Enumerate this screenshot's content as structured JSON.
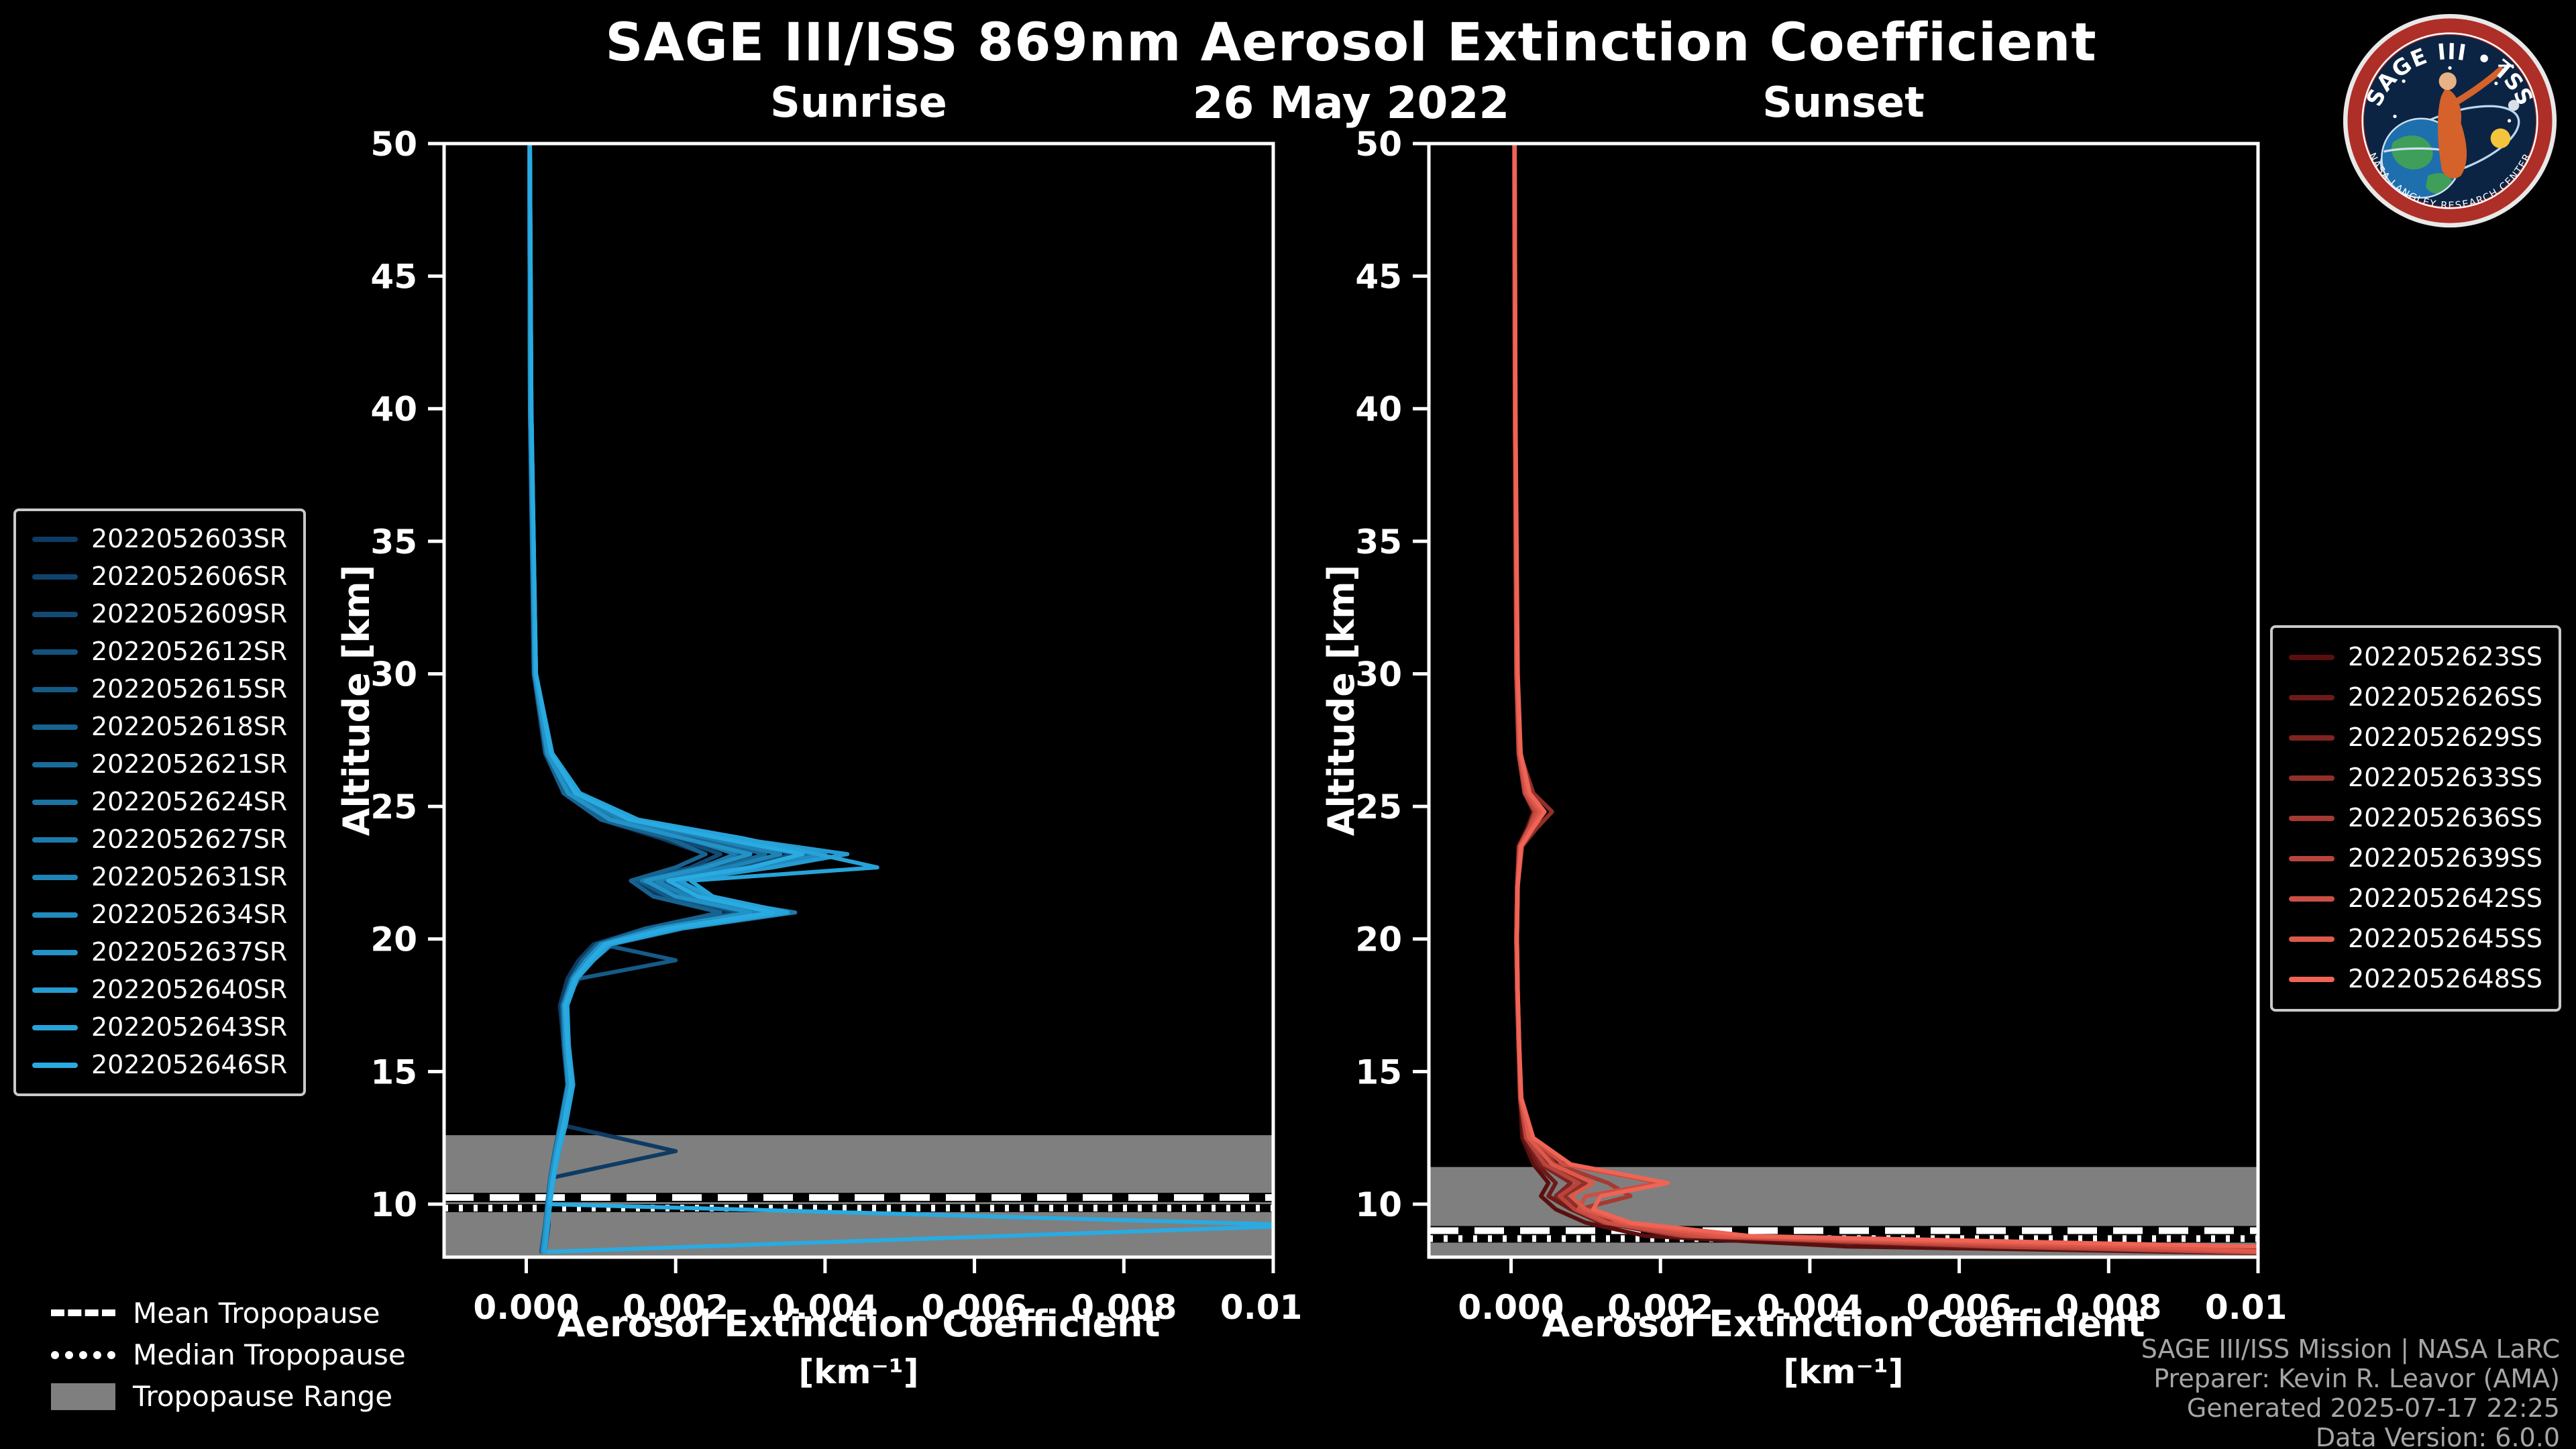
{
  "header": {
    "title": "SAGE III/ISS 869nm Aerosol Extinction Coefficient",
    "date": "26 May 2022"
  },
  "logo": {
    "text": "SAGE III • ISS",
    "ring_text": "NASA LANGLEY RESEARCH CENTER"
  },
  "colors": {
    "background": "#000000",
    "text": "#ffffff",
    "muted_text": "#a6a6a6",
    "band": "#7f7f7f",
    "frame": "#ffffff",
    "sunrise_accent": "#29abe2",
    "sunset_accent": "#f06455"
  },
  "tropopause_legend": {
    "items": [
      {
        "label": "Mean Tropopause",
        "style": "dashed"
      },
      {
        "label": "Median Tropopause",
        "style": "dotted"
      },
      {
        "label": "Tropopause Range",
        "style": "band"
      }
    ]
  },
  "footer": {
    "lines": [
      "SAGE III/ISS Mission | NASA LaRC",
      "Preparer: Kevin R. Leavor (AMA)",
      "Generated 2025-07-17 22:25",
      "Data Version: 6.0.0"
    ]
  },
  "chart_data": [
    {
      "type": "line",
      "id": "sunrise",
      "title": "Sunrise",
      "xlabel": "Aerosol Extinction Coefficient",
      "xlabel_units": "[km⁻¹]",
      "ylabel": "Altitude [km]",
      "xlim": [
        -0.0011,
        0.01
      ],
      "ylim": [
        8,
        50
      ],
      "xticks": [
        0,
        0.002,
        0.004,
        0.006,
        0.008,
        0.01
      ],
      "xtick_labels": [
        "0.000",
        "0.002",
        "0.004",
        "0.006",
        "0.008",
        "0.010"
      ],
      "yticks": [
        10,
        15,
        20,
        25,
        30,
        35,
        40,
        45,
        50
      ],
      "grid": false,
      "legend_side": "left",
      "tropopause": {
        "range": [
          8,
          12.6
        ],
        "mean": 10.25,
        "median": 9.85
      },
      "altitudes": [
        50,
        40,
        30,
        27,
        25.5,
        24.5,
        23.8,
        23.2,
        22.7,
        22.2,
        21.6,
        21,
        20.4,
        19.8,
        19.2,
        18.5,
        17.5,
        16,
        14.5,
        13,
        12,
        11,
        10,
        9.2,
        8.2
      ],
      "series": [
        {
          "name": "2022052603SR",
          "color": "#0d3b63",
          "ext": [
            5e-05,
            6e-05,
            0.0001,
            0.00025,
            0.0005,
            0.001,
            0.0018,
            0.0024,
            0.002,
            0.0014,
            0.0018,
            0.0028,
            0.0016,
            0.0009,
            0.0007,
            0.00055,
            0.00045,
            0.0005,
            0.00055,
            0.00045,
            0.002,
            0.00035,
            0.0003,
            0.00025,
            0.0002
          ]
        },
        {
          "name": "2022052606SR",
          "color": "#0f436c",
          "ext": [
            5e-05,
            6e-05,
            0.00012,
            0.0003,
            0.0006,
            0.0012,
            0.0022,
            0.003,
            0.0024,
            0.0016,
            0.002,
            0.003,
            0.0018,
            0.001,
            0.0008,
            0.0006,
            0.0005,
            0.00055,
            0.0006,
            0.0005,
            0.0004,
            0.00035,
            0.0003,
            0.0003,
            0.00025
          ]
        },
        {
          "name": "2022052609SR",
          "color": "#114b75",
          "ext": [
            4e-05,
            5e-05,
            0.0001,
            0.00028,
            0.00055,
            0.0011,
            0.002,
            0.0026,
            0.0022,
            0.0015,
            0.0022,
            0.0034,
            0.002,
            0.0011,
            0.0009,
            0.00065,
            0.0005,
            0.0005,
            0.00055,
            0.00045,
            0.00038,
            0.00032,
            0.00028,
            0.00026,
            0.00022
          ]
        },
        {
          "name": "2022052612SR",
          "color": "#13537e",
          "ext": [
            5e-05,
            6e-05,
            0.00011,
            0.0003,
            0.0006,
            0.0013,
            0.0025,
            0.0036,
            0.0028,
            0.0018,
            0.0022,
            0.0032,
            0.0019,
            0.001,
            0.00085,
            0.0006,
            0.0005,
            0.00055,
            0.0006,
            0.0005,
            0.0004,
            0.00035,
            0.0003,
            0.00028,
            0.00024
          ]
        },
        {
          "name": "2022052615SR",
          "color": "#155b87",
          "ext": [
            5e-05,
            6e-05,
            0.0001,
            0.00028,
            0.00055,
            0.0011,
            0.0021,
            0.0029,
            0.0023,
            0.0015,
            0.0019,
            0.0029,
            0.0017,
            0.001,
            0.002,
            0.0007,
            0.0005,
            0.0005,
            0.00055,
            0.00045,
            0.0004,
            0.00033,
            0.0003,
            0.00027,
            0.00022
          ]
        },
        {
          "name": "2022052618SR",
          "color": "#176390",
          "ext": [
            4e-05,
            5e-05,
            0.0001,
            0.00026,
            0.0005,
            0.001,
            0.0019,
            0.0024,
            0.002,
            0.0014,
            0.0017,
            0.0026,
            0.0016,
            0.00095,
            0.00075,
            0.0006,
            0.00048,
            0.0005,
            0.00055,
            0.00045,
            0.00038,
            0.00032,
            0.00028,
            0.00025,
            0.0002
          ]
        },
        {
          "name": "2022052621SR",
          "color": "#196b99",
          "ext": [
            5e-05,
            6e-05,
            0.00011,
            0.0003,
            0.0006,
            0.0012,
            0.0023,
            0.0032,
            0.0026,
            0.0017,
            0.0021,
            0.0031,
            0.0018,
            0.001,
            0.0008,
            0.00062,
            0.0005,
            0.00052,
            0.00058,
            0.00048,
            0.0004,
            0.00034,
            0.0003,
            0.00027,
            0.00023
          ]
        },
        {
          "name": "2022052624SR",
          "color": "#1b73a2",
          "ext": [
            5e-05,
            6e-05,
            0.00012,
            0.00032,
            0.00065,
            0.00135,
            0.0026,
            0.0038,
            0.003,
            0.0019,
            0.0023,
            0.0033,
            0.0019,
            0.00105,
            0.00085,
            0.00065,
            0.00052,
            0.00054,
            0.0006,
            0.0005,
            0.00042,
            0.00035,
            0.0003,
            0.00028,
            0.00024
          ]
        },
        {
          "name": "2022052627SR",
          "color": "#1d7bab",
          "ext": [
            4e-05,
            5e-05,
            0.00011,
            0.00029,
            0.00058,
            0.00115,
            0.00215,
            0.0028,
            0.00235,
            0.00155,
            0.0023,
            0.0036,
            0.0021,
            0.00115,
            0.0009,
            0.00068,
            0.00052,
            0.00052,
            0.00057,
            0.00047,
            0.0004,
            0.00033,
            0.00029,
            0.00026,
            0.00022
          ]
        },
        {
          "name": "2022052631SR",
          "color": "#1f83b5",
          "ext": [
            5e-05,
            6e-05,
            0.00012,
            0.00031,
            0.00062,
            0.00128,
            0.00245,
            0.0034,
            0.0027,
            0.00175,
            0.00215,
            0.00315,
            0.00185,
            0.00102,
            0.00082,
            0.00063,
            0.0005,
            0.00053,
            0.00058,
            0.00048,
            0.0004,
            0.00034,
            0.0003,
            0.00027,
            0.00023
          ]
        },
        {
          "name": "2022052634SR",
          "color": "#218bbe",
          "ext": [
            5e-05,
            6e-05,
            0.00012,
            0.00033,
            0.00068,
            0.0014,
            0.0027,
            0.004,
            0.0031,
            0.00195,
            0.00235,
            0.00335,
            0.00195,
            0.00108,
            0.00086,
            0.00066,
            0.00053,
            0.00055,
            0.0006,
            0.0005,
            0.00042,
            0.00035,
            0.00031,
            0.00028,
            0.00024
          ]
        },
        {
          "name": "2022052637SR",
          "color": "#2393c7",
          "ext": [
            4e-05,
            5e-05,
            0.00011,
            0.00028,
            0.00056,
            0.00112,
            0.0021,
            0.003,
            0.0024,
            0.0016,
            0.002,
            0.003,
            0.00175,
            0.001,
            0.0008,
            0.00062,
            0.0005,
            0.00052,
            0.00056,
            0.00046,
            0.00039,
            0.00033,
            0.00029,
            0.00026,
            0.00022
          ]
        },
        {
          "name": "2022052640SR",
          "color": "#259bd0",
          "ext": [
            5e-05,
            7e-05,
            0.00013,
            0.00034,
            0.0007,
            0.00145,
            0.0028,
            0.0043,
            0.0033,
            0.00205,
            0.00245,
            0.00345,
            0.002,
            0.0011,
            0.00088,
            0.00067,
            0.00054,
            0.00056,
            0.00062,
            0.00052,
            0.00043,
            0.00036,
            0.00031,
            0.00028,
            0.00024
          ]
        },
        {
          "name": "2022052643SR",
          "color": "#27a3d9",
          "ext": [
            5e-05,
            7e-05,
            0.00013,
            0.00035,
            0.00072,
            0.0015,
            0.0029,
            0.0039,
            0.0047,
            0.0022,
            0.0025,
            0.0035,
            0.00205,
            0.00112,
            0.0009,
            0.00068,
            0.00055,
            0.00057,
            0.00063,
            0.00053,
            0.00044,
            0.00037,
            0.00032,
            0.00029,
            0.00025
          ]
        },
        {
          "name": "2022052646SR",
          "color": "#29abe2",
          "ext": [
            5e-05,
            7e-05,
            0.00013,
            0.00033,
            0.00066,
            0.00138,
            0.0026,
            0.0037,
            0.003,
            0.0019,
            0.0023,
            0.0033,
            0.0019,
            0.00105,
            0.00085,
            0.00065,
            0.00052,
            0.00055,
            0.0006,
            0.0005,
            0.00042,
            0.00036,
            0.00031,
            0.0105,
            0.0003
          ]
        }
      ]
    },
    {
      "type": "line",
      "id": "sunset",
      "title": "Sunset",
      "xlabel": "Aerosol Extinction Coefficient",
      "xlabel_units": "[km⁻¹]",
      "ylabel": "Altitude [km]",
      "xlim": [
        -0.0011,
        0.01
      ],
      "ylim": [
        8,
        50
      ],
      "xticks": [
        0,
        0.002,
        0.004,
        0.006,
        0.008,
        0.01
      ],
      "xtick_labels": [
        "0.000",
        "0.002",
        "0.004",
        "0.006",
        "0.008",
        "0.010"
      ],
      "yticks": [
        10,
        15,
        20,
        25,
        30,
        35,
        40,
        45,
        50
      ],
      "grid": false,
      "legend_side": "right",
      "tropopause": {
        "range": [
          8,
          11.4
        ],
        "mean": 9.0,
        "median": 8.7
      },
      "altitudes": [
        50,
        40,
        30,
        27,
        25.5,
        24.8,
        24.2,
        23.5,
        22,
        20,
        18,
        16,
        14,
        12.5,
        11.5,
        10.8,
        10.3,
        9.8,
        9.3,
        8.8,
        8.4,
        8.1
      ],
      "series": [
        {
          "name": "2022052623SS",
          "color": "#5a0f0f",
          "ext": [
            5e-05,
            5e-05,
            8e-05,
            0.0001,
            0.0002,
            0.00035,
            0.00025,
            0.00012,
            8e-05,
            7e-05,
            8e-05,
            0.0001,
            0.00012,
            0.00015,
            0.0003,
            0.0005,
            0.0004,
            0.0006,
            0.001,
            0.0018,
            0.0045,
            0.011
          ]
        },
        {
          "name": "2022052626SS",
          "color": "#6d1a18",
          "ext": [
            4e-05,
            5e-05,
            7e-05,
            0.0001,
            0.00018,
            0.0003,
            0.00022,
            0.0001,
            8e-05,
            7e-05,
            8e-05,
            0.0001,
            0.00012,
            0.00018,
            0.00035,
            0.0006,
            0.0005,
            0.0008,
            0.0012,
            0.0022,
            0.006,
            0.011
          ]
        },
        {
          "name": "2022052629SS",
          "color": "#802421",
          "ext": [
            5e-05,
            5e-05,
            8e-05,
            0.00012,
            0.00022,
            0.0004,
            0.00028,
            0.00012,
            9e-05,
            8e-05,
            9e-05,
            0.00011,
            0.00013,
            0.0002,
            0.0004,
            0.0008,
            0.0006,
            0.0009,
            0.0014,
            0.0026,
            0.008,
            0.011
          ]
        },
        {
          "name": "2022052633SS",
          "color": "#922f29",
          "ext": [
            5e-05,
            6e-05,
            8e-05,
            0.00012,
            0.0003,
            0.00055,
            0.00035,
            0.00015,
            9e-05,
            8e-05,
            9e-05,
            0.00011,
            0.00014,
            0.00022,
            0.0005,
            0.001,
            0.0007,
            0.001,
            0.0016,
            0.003,
            0.0095,
            0.011
          ]
        },
        {
          "name": "2022052636SS",
          "color": "#a53a32",
          "ext": [
            5e-05,
            5e-05,
            8e-05,
            0.00011,
            0.0002,
            0.00038,
            0.00026,
            0.00012,
            8e-05,
            7e-05,
            9e-05,
            0.0001,
            0.00013,
            0.00025,
            0.0006,
            0.0013,
            0.0016,
            0.0009,
            0.0013,
            0.0024,
            0.007,
            0.011
          ]
        },
        {
          "name": "2022052639SS",
          "color": "#b8443b",
          "ext": [
            4e-05,
            5e-05,
            7e-05,
            0.0001,
            0.00018,
            0.00032,
            0.00024,
            0.00011,
            8e-05,
            7e-05,
            8e-05,
            0.0001,
            0.00012,
            0.0002,
            0.00045,
            0.0009,
            0.00065,
            0.00085,
            0.00125,
            0.0023,
            0.0065,
            0.011
          ]
        },
        {
          "name": "2022052642SS",
          "color": "#cb4f44",
          "ext": [
            5e-05,
            5e-05,
            8e-05,
            0.00011,
            0.0002,
            0.00036,
            0.00025,
            0.00012,
            8e-05,
            7e-05,
            8e-05,
            0.0001,
            0.00013,
            0.00028,
            0.0007,
            0.002,
            0.001,
            0.0009,
            0.0013,
            0.0025,
            0.0075,
            0.011
          ]
        },
        {
          "name": "2022052645SS",
          "color": "#dd594c",
          "ext": [
            5e-05,
            6e-05,
            8e-05,
            0.00012,
            0.00022,
            0.0004,
            0.00028,
            0.00013,
            9e-05,
            8e-05,
            9e-05,
            0.00011,
            0.00013,
            0.00024,
            0.00055,
            0.0011,
            0.0008,
            0.001,
            0.0015,
            0.0028,
            0.0085,
            0.011
          ]
        },
        {
          "name": "2022052648SS",
          "color": "#f06455",
          "ext": [
            5e-05,
            6e-05,
            9e-05,
            0.00013,
            0.00025,
            0.00045,
            0.0003,
            0.00014,
            9e-05,
            8e-05,
            9e-05,
            0.00011,
            0.00014,
            0.0003,
            0.0008,
            0.0021,
            0.0012,
            0.0011,
            0.0016,
            0.0032,
            0.01,
            0.011
          ]
        }
      ]
    }
  ]
}
